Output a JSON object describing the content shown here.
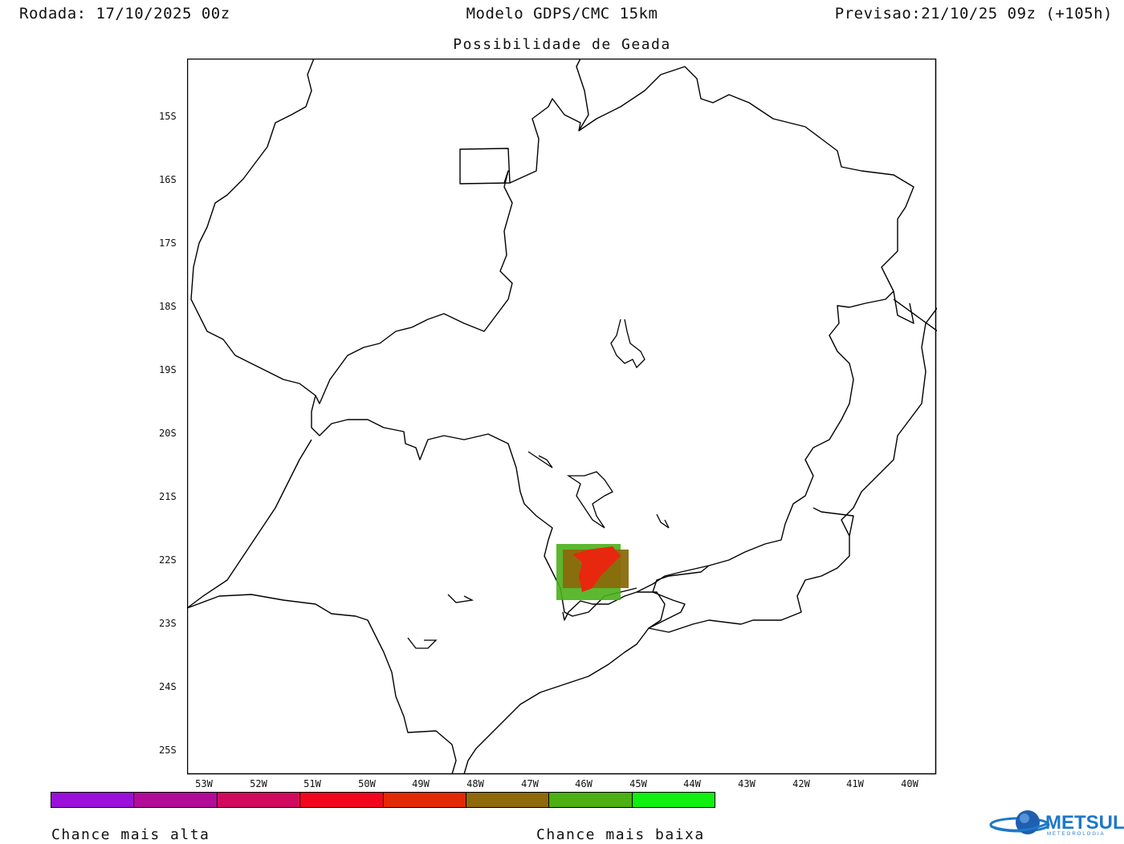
{
  "header": {
    "run": "Rodada: 17/10/2025 00z",
    "model": "Modelo GDPS/CMC 15km",
    "forecast": "Previsao:21/10/25 09z (+105h)",
    "subtitle": "Possibilidade de Geada"
  },
  "map": {
    "lat_labels": [
      "15S",
      "16S",
      "17S",
      "18S",
      "19S",
      "20S",
      "21S",
      "22S",
      "23S",
      "24S",
      "25S"
    ],
    "lon_labels": [
      "53W",
      "52W",
      "51W",
      "50W",
      "49W",
      "48W",
      "47W",
      "46W",
      "45W",
      "44W",
      "43W",
      "42W",
      "41W",
      "40W"
    ],
    "frost_colors": {
      "high": "#e8280e",
      "mid": "#8a6a0c",
      "low": "#4ab01a"
    }
  },
  "legend": {
    "colors": [
      "#9a10d8",
      "#b00c98",
      "#d00a5e",
      "#f2061e",
      "#e22a06",
      "#8e6a0a",
      "#4caf12",
      "#10f010"
    ],
    "label_high": "Chance mais alta",
    "label_low": "Chance mais baixa"
  },
  "logo": {
    "name": "METSUL",
    "tagline": "METEOROLOGIA"
  }
}
